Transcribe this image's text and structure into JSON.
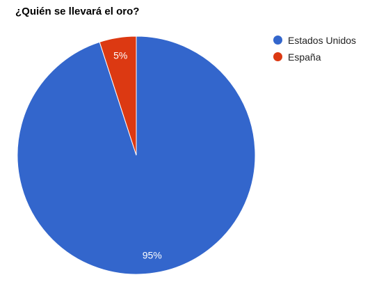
{
  "chart_data": {
    "type": "pie",
    "title": "¿Quién se llevará el oro?",
    "categories": [
      "Estados Unidos",
      "España"
    ],
    "values": [
      95,
      5
    ],
    "data_labels": [
      "95%",
      "5%"
    ],
    "colors": [
      "#3366cc",
      "#dc3912"
    ],
    "legend": {
      "position": "right",
      "items": [
        {
          "label": "Estados Unidos",
          "color": "#3366cc"
        },
        {
          "label": "España",
          "color": "#dc3912"
        }
      ]
    }
  }
}
